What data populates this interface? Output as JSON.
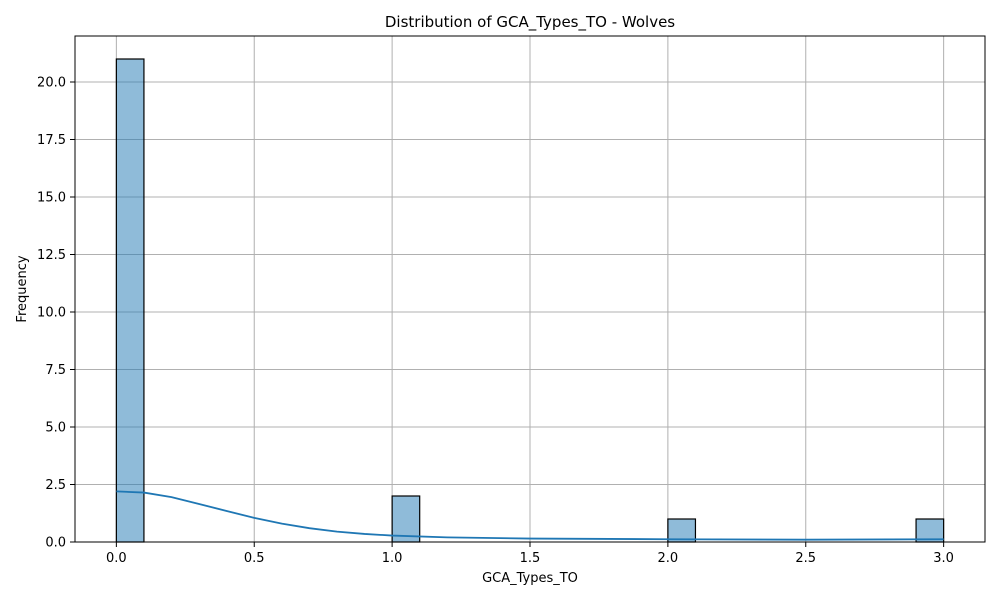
{
  "chart_data": {
    "type": "bar",
    "title": "Distribution of GCA_Types_TO - Wolves",
    "xlabel": "GCA_Types_TO",
    "ylabel": "Frequency",
    "xlim": [
      -0.15,
      3.15
    ],
    "ylim": [
      0,
      22
    ],
    "grid": true,
    "colors": {
      "bar": "#1f77b4",
      "kde": "#1f77b4",
      "grid": "#b0b0b0"
    },
    "xticks": [
      0.0,
      0.5,
      1.0,
      1.5,
      2.0,
      2.5,
      3.0
    ],
    "xtick_labels": [
      "0.0",
      "0.5",
      "1.0",
      "1.5",
      "2.0",
      "2.5",
      "3.0"
    ],
    "yticks": [
      0.0,
      2.5,
      5.0,
      7.5,
      10.0,
      12.5,
      15.0,
      17.5,
      20.0
    ],
    "ytick_labels": [
      "0.0",
      "2.5",
      "5.0",
      "7.5",
      "10.0",
      "12.5",
      "15.0",
      "17.5",
      "20.0"
    ],
    "bins": [
      {
        "x0": 0.0,
        "x1": 0.1,
        "count": 21
      },
      {
        "x0": 1.0,
        "x1": 1.1,
        "count": 2
      },
      {
        "x0": 2.0,
        "x1": 2.1,
        "count": 1
      },
      {
        "x0": 2.9,
        "x1": 3.0,
        "count": 1
      }
    ],
    "kde": {
      "x": [
        0.0,
        0.1,
        0.2,
        0.3,
        0.4,
        0.5,
        0.6,
        0.7,
        0.8,
        0.9,
        1.0,
        1.2,
        1.5,
        2.0,
        2.5,
        3.0
      ],
      "y": [
        2.2,
        2.15,
        1.95,
        1.65,
        1.35,
        1.05,
        0.8,
        0.6,
        0.45,
        0.35,
        0.28,
        0.2,
        0.15,
        0.12,
        0.1,
        0.12
      ]
    }
  }
}
